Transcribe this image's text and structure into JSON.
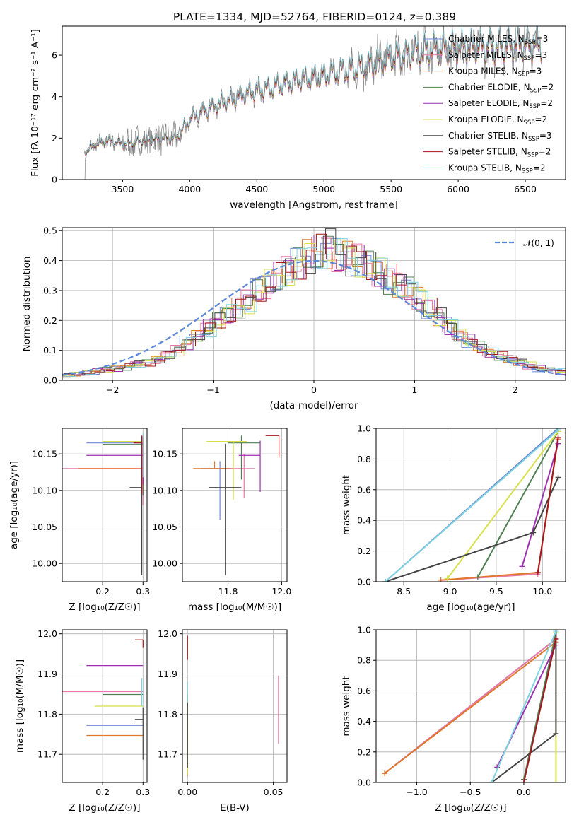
{
  "figure": {
    "title": "PLATE=1334, MJD=52764, FIBERID=0124, z=0.389"
  },
  "models": [
    {
      "name": "Chabrier MILES",
      "nssp": "3",
      "color": "#6f86d6"
    },
    {
      "name": "Salpeter MILES",
      "nssp": "3",
      "color": "#e879a8"
    },
    {
      "name": "Kroupa MILES",
      "nssp": "3",
      "color": "#e0782a"
    },
    {
      "name": "Chabrier ELODIE",
      "nssp": "2",
      "color": "#4f8053"
    },
    {
      "name": "Salpeter ELODIE",
      "nssp": "2",
      "color": "#9b2fae"
    },
    {
      "name": "Kroupa ELODIE",
      "nssp": "2",
      "color": "#d8e049"
    },
    {
      "name": "Chabrier STELIB",
      "nssp": "3",
      "color": "#444444"
    },
    {
      "name": "Salpeter STELIB",
      "nssp": "2",
      "color": "#a3171c"
    },
    {
      "name": "Kroupa STELIB",
      "nssp": "2",
      "color": "#7fd3e0"
    }
  ],
  "chart_data": [
    {
      "id": "spectrum",
      "type": "line",
      "xlabel": "wavelength [Angstrom, rest frame]",
      "ylabel": "Flux [fλ 10⁻¹⁷ erg cm⁻² s⁻¹ A⁻¹]",
      "xlim": [
        3050,
        6800
      ],
      "ylim": [
        0,
        7.4
      ],
      "xticks": [
        3500,
        4000,
        4500,
        5000,
        5500,
        6000,
        6500
      ],
      "yticks": [
        0,
        2,
        4,
        6
      ],
      "data_color": "#808080",
      "continuum": {
        "x": [
          3215,
          3300,
          3400,
          3500,
          3600,
          3700,
          3800,
          3900,
          4000,
          4100,
          4200,
          4300,
          4400,
          4500,
          4600,
          4700,
          4800,
          4900,
          5000,
          5100,
          5200,
          5300,
          5400,
          5500,
          5600,
          5700,
          5800,
          5900,
          6000,
          6100,
          6200,
          6300,
          6400,
          6500,
          6600
        ],
        "y": [
          1.3,
          1.7,
          1.9,
          1.7,
          1.8,
          1.9,
          2.0,
          2.0,
          2.9,
          3.3,
          3.6,
          3.8,
          4.1,
          4.3,
          4.4,
          4.6,
          4.8,
          4.9,
          5.0,
          5.2,
          5.3,
          5.5,
          5.6,
          5.9,
          6.0,
          6.2,
          6.3,
          6.3,
          6.4,
          6.4,
          6.4,
          6.4,
          6.5,
          6.5,
          6.5
        ]
      },
      "legend": "top-right",
      "grid": false
    },
    {
      "id": "residuals",
      "type": "histogram",
      "xlabel": "(data-model)/error",
      "ylabel": "Normed distribution",
      "xlim": [
        -2.5,
        2.5
      ],
      "ylim": [
        0,
        0.51
      ],
      "xticks": [
        -2,
        -1,
        0,
        1,
        2
      ],
      "yticks": [
        0.0,
        0.1,
        0.2,
        0.3,
        0.4,
        0.5
      ],
      "bins": [
        -2.5,
        -2.4,
        -2.3,
        -2.2,
        -2.1,
        -2.0,
        -1.9,
        -1.8,
        -1.7,
        -1.6,
        -1.5,
        -1.4,
        -1.3,
        -1.2,
        -1.1,
        -1.0,
        -0.9,
        -0.8,
        -0.7,
        -0.6,
        -0.5,
        -0.4,
        -0.3,
        -0.2,
        -0.1,
        0.0,
        0.1,
        0.2,
        0.3,
        0.4,
        0.5,
        0.6,
        0.7,
        0.8,
        0.9,
        1.0,
        1.1,
        1.2,
        1.3,
        1.4,
        1.5,
        1.6,
        1.7,
        1.8,
        1.9,
        2.0,
        2.1,
        2.2,
        2.3,
        2.4
      ],
      "density": [
        0.015,
        0.02,
        0.025,
        0.03,
        0.035,
        0.04,
        0.045,
        0.055,
        0.06,
        0.07,
        0.085,
        0.1,
        0.125,
        0.15,
        0.175,
        0.2,
        0.22,
        0.24,
        0.26,
        0.3,
        0.32,
        0.35,
        0.37,
        0.39,
        0.41,
        0.43,
        0.44,
        0.42,
        0.41,
        0.4,
        0.38,
        0.36,
        0.34,
        0.32,
        0.3,
        0.27,
        0.24,
        0.21,
        0.18,
        0.15,
        0.13,
        0.11,
        0.09,
        0.08,
        0.07,
        0.06,
        0.05,
        0.04,
        0.035,
        0.03
      ],
      "reference_label": "𝒩(0, 1)",
      "reference_color": "#5b87d9",
      "legend": "top-right",
      "grid": true
    },
    {
      "id": "age_vs_Z",
      "type": "errorbar",
      "xlabel": "Z [log₁₀(Z/Z☉)]",
      "ylabel": "age  [log₁₀(age/yr)]",
      "xlim": [
        0.1,
        0.31
      ],
      "ylim": [
        9.975,
        10.185
      ],
      "xticks": [
        0.2,
        0.3
      ],
      "yticks": [
        10.0,
        10.05,
        10.1,
        10.15
      ],
      "points": [
        {
          "x": 0.3,
          "y": 10.165,
          "xerr": [
            0.14,
            0.0
          ],
          "yerr": [
            0.02,
            0.01
          ],
          "color": "#6f86d6"
        },
        {
          "x": 0.3,
          "y": 10.13,
          "xerr": [
            0.2,
            0.0
          ],
          "yerr": [
            0.05,
            0.0
          ],
          "color": "#e879a8"
        },
        {
          "x": 0.3,
          "y": 10.13,
          "xerr": [
            0.16,
            0.0
          ],
          "yerr": [
            0.0,
            0.0
          ],
          "color": "#e0782a"
        },
        {
          "x": 0.3,
          "y": 10.163,
          "xerr": [
            0.1,
            0.0
          ],
          "yerr": [
            0.07,
            0.01
          ],
          "color": "#4f8053"
        },
        {
          "x": 0.3,
          "y": 10.148,
          "xerr": [
            0.14,
            0.0
          ],
          "yerr": [
            0.04,
            0.02
          ],
          "color": "#9b2fae"
        },
        {
          "x": 0.3,
          "y": 10.167,
          "xerr": [
            0.1,
            0.0
          ],
          "yerr": [
            0.0,
            0.0
          ],
          "color": "#d8e049"
        },
        {
          "x": 0.297,
          "y": 10.104,
          "xerr": [
            0.03,
            0.0
          ],
          "yerr": [
            0.12,
            0.07
          ],
          "color": "#444444"
        },
        {
          "x": 0.297,
          "y": 10.165,
          "xerr": [
            0.02,
            0.0
          ],
          "yerr": [
            0.07,
            0.01
          ],
          "color": "#a3171c"
        },
        {
          "x": 0.3,
          "y": 10.168,
          "xerr": [
            0.0,
            0.0
          ],
          "yerr": [
            0.05,
            0.01
          ],
          "color": "#7fd3e0"
        }
      ],
      "grid": true
    },
    {
      "id": "age_vs_mass",
      "type": "errorbar",
      "xlabel": "mass [log₁₀(M/M☉)]",
      "ylabel": "",
      "xlim": [
        11.63,
        12.02
      ],
      "ylim": [
        9.975,
        10.185
      ],
      "xticks": [
        11.8,
        12.0
      ],
      "yticks": [
        10.0,
        10.05,
        10.1,
        10.15
      ],
      "points": [
        {
          "x": 11.77,
          "y": 10.13,
          "xerr": [
            0.07,
            0.05
          ],
          "yerr": [
            0.07,
            0.01
          ],
          "color": "#6f86d6"
        },
        {
          "x": 11.86,
          "y": 10.13,
          "xerr": [
            0.1,
            0.04
          ],
          "yerr": [
            0.04,
            0.02
          ],
          "color": "#e879a8"
        },
        {
          "x": 11.75,
          "y": 10.13,
          "xerr": [
            0.08,
            0.06
          ],
          "yerr": [
            0.0,
            0.01
          ],
          "color": "#e0782a"
        },
        {
          "x": 11.85,
          "y": 10.165,
          "xerr": [
            0.05,
            0.07
          ],
          "yerr": [
            0.05,
            0.01
          ],
          "color": "#4f8053"
        },
        {
          "x": 11.92,
          "y": 10.148,
          "xerr": [
            0.08,
            0.0
          ],
          "yerr": [
            0.05,
            0.02
          ],
          "color": "#9b2fae"
        },
        {
          "x": 11.82,
          "y": 10.167,
          "xerr": [
            0.1,
            0.05
          ],
          "yerr": [
            0.08,
            0.0
          ],
          "color": "#d8e049"
        },
        {
          "x": 11.79,
          "y": 10.104,
          "xerr": [
            0.06,
            0.06
          ],
          "yerr": [
            0.12,
            0.06
          ],
          "color": "#444444"
        },
        {
          "x": 11.99,
          "y": 10.175,
          "xerr": [
            0.05,
            0.0
          ],
          "yerr": [
            0.03,
            0.0
          ],
          "color": "#a3171c"
        },
        {
          "x": 11.92,
          "y": 10.165,
          "xerr": [
            0.0,
            0.0
          ],
          "yerr": [
            0.0,
            0.0
          ],
          "color": "#7fd3e0"
        }
      ],
      "grid": true
    },
    {
      "id": "mass_weight_vs_age",
      "type": "line",
      "xlabel": "age  [log₁₀(age/yr)]",
      "ylabel": "mass weight",
      "xlim": [
        8.2,
        10.25
      ],
      "ylim": [
        0,
        1
      ],
      "xticks": [
        8.5,
        9.0,
        9.5,
        10.0
      ],
      "yticks": [
        0.0,
        0.2,
        0.4,
        0.6,
        0.8,
        1.0
      ],
      "series": [
        {
          "color": "#6f86d6",
          "x": [
            8.3,
            10.17
          ],
          "y": [
            0.0,
            1.0
          ]
        },
        {
          "color": "#e879a8",
          "x": [
            8.9,
            9.95,
            10.17
          ],
          "y": [
            0.01,
            0.05,
            0.94
          ]
        },
        {
          "color": "#e0782a",
          "x": [
            8.9,
            9.95,
            10.17
          ],
          "y": [
            0.01,
            0.06,
            0.93
          ]
        },
        {
          "color": "#4f8053",
          "x": [
            9.3,
            10.17
          ],
          "y": [
            0.03,
            0.98
          ]
        },
        {
          "color": "#9b2fae",
          "x": [
            9.78,
            10.17
          ],
          "y": [
            0.1,
            0.9
          ]
        },
        {
          "color": "#d8e049",
          "x": [
            8.97,
            10.17
          ],
          "y": [
            0.02,
            0.98
          ]
        },
        {
          "color": "#444444",
          "x": [
            8.3,
            9.9,
            10.17
          ],
          "y": [
            0.0,
            0.32,
            0.68
          ]
        },
        {
          "color": "#a3171c",
          "x": [
            9.95,
            10.17
          ],
          "y": [
            0.06,
            0.94
          ]
        },
        {
          "color": "#7fd3e0",
          "x": [
            8.3,
            10.17
          ],
          "y": [
            0.0,
            0.99
          ]
        }
      ],
      "grid": true
    },
    {
      "id": "mass_vs_Z",
      "type": "errorbar",
      "xlabel": "Z [log₁₀(Z/Z☉)]",
      "ylabel": "mass [log₁₀(M/M☉)]",
      "xlim": [
        0.1,
        0.31
      ],
      "ylim": [
        11.63,
        12.01
      ],
      "xticks": [
        0.2,
        0.3
      ],
      "yticks": [
        11.7,
        11.8,
        11.9,
        12.0
      ],
      "points": [
        {
          "x": 0.3,
          "y": 11.772,
          "xerr": [
            0.14,
            0.0
          ],
          "yerr": [
            0.0,
            0.0
          ],
          "color": "#6f86d6"
        },
        {
          "x": 0.3,
          "y": 11.856,
          "xerr": [
            0.2,
            0.0
          ],
          "yerr": [
            0.0,
            0.0
          ],
          "color": "#e879a8"
        },
        {
          "x": 0.3,
          "y": 11.747,
          "xerr": [
            0.14,
            0.0
          ],
          "yerr": [
            0.0,
            0.0
          ],
          "color": "#e0782a"
        },
        {
          "x": 0.3,
          "y": 11.849,
          "xerr": [
            0.1,
            0.0
          ],
          "yerr": [
            0.0,
            0.0
          ],
          "color": "#4f8053"
        },
        {
          "x": 0.3,
          "y": 11.921,
          "xerr": [
            0.14,
            0.0
          ],
          "yerr": [
            0.0,
            0.0
          ],
          "color": "#9b2fae"
        },
        {
          "x": 0.3,
          "y": 11.82,
          "xerr": [
            0.12,
            0.0
          ],
          "yerr": [
            0.0,
            0.0
          ],
          "color": "#d8e049"
        },
        {
          "x": 0.3,
          "y": 11.787,
          "xerr": [
            0.02,
            0.0
          ],
          "yerr": [
            0.1,
            0.03
          ],
          "color": "#444444"
        },
        {
          "x": 0.3,
          "y": 11.985,
          "xerr": [
            0.02,
            0.0
          ],
          "yerr": [
            0.02,
            0.0
          ],
          "color": "#a3171c"
        },
        {
          "x": 0.297,
          "y": 11.86,
          "xerr": [
            0.0,
            0.0
          ],
          "yerr": [
            0.04,
            0.03
          ],
          "color": "#7fd3e0"
        }
      ],
      "grid": true
    },
    {
      "id": "mass_vs_EBV",
      "type": "errorbar",
      "xlabel": "E(B-V)",
      "ylabel": "",
      "xlim": [
        -0.003,
        0.058
      ],
      "ylim": [
        11.63,
        12.01
      ],
      "xticks": [
        0.0,
        0.05
      ],
      "yticks": [
        11.7,
        11.8,
        11.9,
        12.0
      ],
      "points": [
        {
          "x": 0.0,
          "y": 11.772,
          "xerr": [
            0.0,
            0.0
          ],
          "yerr": [
            0.03,
            0.02
          ],
          "color": "#6f86d6"
        },
        {
          "x": 0.053,
          "y": 11.856,
          "xerr": [
            0.0,
            0.0
          ],
          "yerr": [
            0.13,
            0.04
          ],
          "color": "#e879a8"
        },
        {
          "x": 0.0,
          "y": 11.747,
          "xerr": [
            0.0,
            0.0
          ],
          "yerr": [
            0.1,
            0.0
          ],
          "color": "#e0782a"
        },
        {
          "x": 0.0,
          "y": 11.849,
          "xerr": [
            0.0,
            0.0
          ],
          "yerr": [
            0.15,
            0.0
          ],
          "color": "#4f8053"
        },
        {
          "x": 0.0,
          "y": 11.921,
          "xerr": [
            0.0,
            0.0
          ],
          "yerr": [
            0.0,
            0.0
          ],
          "color": "#9b2fae"
        },
        {
          "x": 0.0,
          "y": 11.82,
          "xerr": [
            0.0,
            0.0
          ],
          "yerr": [
            0.17,
            0.0
          ],
          "color": "#d8e049"
        },
        {
          "x": 0.0,
          "y": 11.787,
          "xerr": [
            0.0,
            0.0
          ],
          "yerr": [
            0.12,
            0.04
          ],
          "color": "#444444"
        },
        {
          "x": 0.0,
          "y": 11.985,
          "xerr": [
            0.0,
            0.0
          ],
          "yerr": [
            0.05,
            0.01
          ],
          "color": "#a3171c"
        },
        {
          "x": 0.0,
          "y": 11.86,
          "xerr": [
            0.0,
            0.0
          ],
          "yerr": [
            0.03,
            0.02
          ],
          "color": "#7fd3e0"
        }
      ],
      "grid": true
    },
    {
      "id": "mass_weight_vs_Z",
      "type": "line",
      "xlabel": "Z [log₁₀(Z/Z☉)]",
      "ylabel": "mass weight",
      "xlim": [
        -1.38,
        0.39
      ],
      "ylim": [
        0,
        1
      ],
      "xticks": [
        -1.0,
        -0.5,
        0.0
      ],
      "yticks": [
        0.0,
        0.2,
        0.4,
        0.6,
        0.8,
        1.0
      ],
      "series": [
        {
          "color": "#6f86d6",
          "x": [
            -1.3,
            0.3
          ],
          "y": [
            0.06,
            0.94
          ]
        },
        {
          "color": "#e879a8",
          "x": [
            -1.3,
            0.3
          ],
          "y": [
            0.06,
            0.94
          ]
        },
        {
          "color": "#e0782a",
          "x": [
            -1.3,
            0.3
          ],
          "y": [
            0.06,
            0.92
          ]
        },
        {
          "color": "#4f8053",
          "x": [
            0.0,
            0.3
          ],
          "y": [
            0.02,
            0.98
          ]
        },
        {
          "color": "#9b2fae",
          "x": [
            -0.25,
            0.3
          ],
          "y": [
            0.1,
            0.9
          ]
        },
        {
          "color": "#d8e049",
          "x": [
            0.3,
            0.3
          ],
          "y": [
            0.0,
            0.98
          ]
        },
        {
          "color": "#444444",
          "x": [
            -0.3,
            0.3,
            0.3
          ],
          "y": [
            0.0,
            0.32,
            1.0
          ]
        },
        {
          "color": "#a3171c",
          "x": [
            0.0,
            0.3
          ],
          "y": [
            0.0,
            0.94
          ]
        },
        {
          "color": "#7fd3e0",
          "x": [
            -0.3,
            0.3
          ],
          "y": [
            0.0,
            0.99
          ]
        }
      ],
      "grid": true
    }
  ]
}
